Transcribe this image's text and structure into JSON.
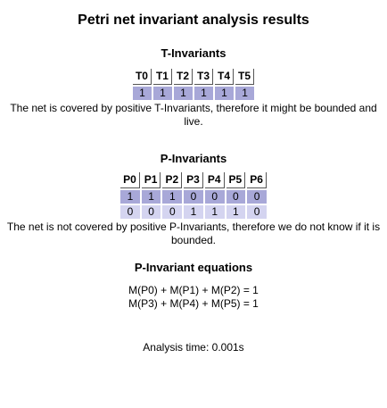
{
  "title": "Petri net invariant analysis results",
  "t_invariants": {
    "heading": "T-Invariants",
    "columns": [
      "T0",
      "T1",
      "T2",
      "T3",
      "T4",
      "T5"
    ],
    "rows": [
      [
        "1",
        "1",
        "1",
        "1",
        "1",
        "1"
      ]
    ],
    "note": "The net is covered by positive T-Invariants, therefore it might be bounded and live."
  },
  "p_invariants": {
    "heading": "P-Invariants",
    "columns": [
      "P0",
      "P1",
      "P2",
      "P3",
      "P4",
      "P5",
      "P6"
    ],
    "rows": [
      [
        "1",
        "1",
        "1",
        "0",
        "0",
        "0",
        "0"
      ],
      [
        "0",
        "0",
        "0",
        "1",
        "1",
        "1",
        "0"
      ]
    ],
    "note": "The net is not covered by positive P-Invariants, therefore we do not know if it is bounded."
  },
  "equations": {
    "heading": "P-Invariant equations",
    "lines": [
      "M(P0) + M(P1) + M(P2) = 1",
      "M(P3) + M(P4) + M(P5) = 1"
    ]
  },
  "analysis_time": "Analysis time: 0.001s",
  "colors": {
    "row_dark": "#a8a8d8",
    "row_light": "#d4d4f0"
  }
}
